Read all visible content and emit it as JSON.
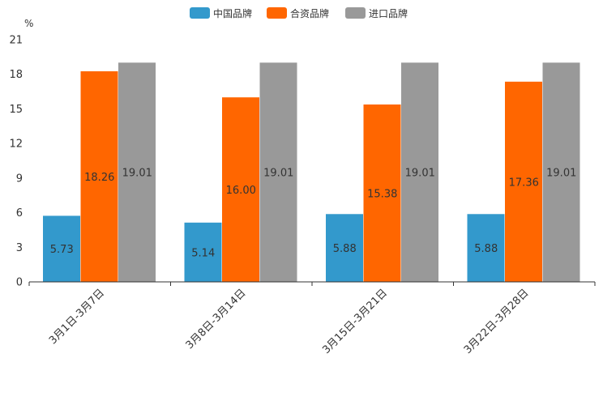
{
  "chart_data": {
    "type": "bar",
    "title": "",
    "xlabel": "",
    "ylabel": "%",
    "ylim": [
      0,
      21
    ],
    "yticks": [
      0,
      3,
      6,
      9,
      12,
      15,
      18,
      21
    ],
    "legend_position": "top-center",
    "categories": [
      "3月1日-3月7日",
      "3月8日-3月14日",
      "3月15日-3月21日",
      "3月22日-3月28日"
    ],
    "series": [
      {
        "name": "中国品牌",
        "color": "#3399cc",
        "values": [
          5.73,
          5.14,
          5.88,
          5.88
        ],
        "labels": [
          "5.73",
          "5.14",
          "5.88",
          "5.88"
        ]
      },
      {
        "name": "合资品牌",
        "color": "#ff6600",
        "values": [
          18.26,
          16.0,
          15.38,
          17.36
        ],
        "labels": [
          "18.26",
          "16.00",
          "15.38",
          "17.36"
        ]
      },
      {
        "name": "进口品牌",
        "color": "#999999",
        "values": [
          19.01,
          19.01,
          19.01,
          19.01
        ],
        "labels": [
          "19.01",
          "19.01",
          "19.01",
          "19.01"
        ]
      }
    ]
  }
}
